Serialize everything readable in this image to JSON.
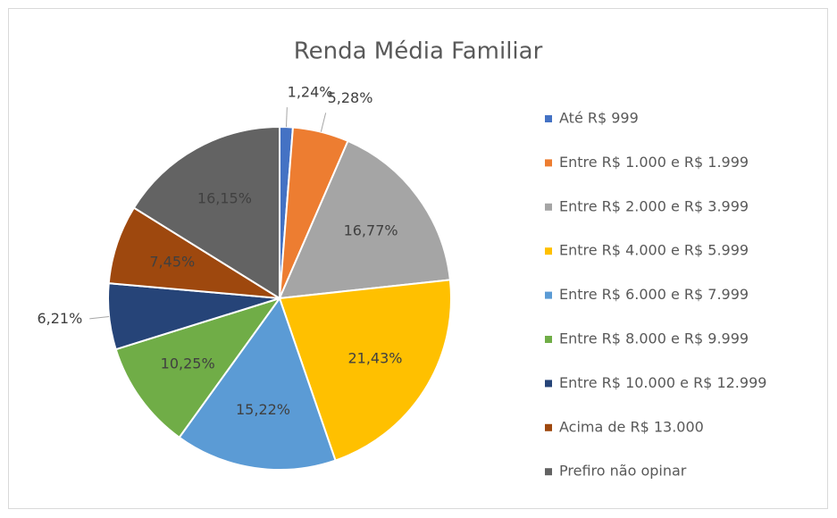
{
  "chart_data": {
    "type": "pie",
    "title": "Renda Média Familiar",
    "categories": [
      "Até R$ 999",
      "Entre R$ 1.000 e R$ 1.999",
      "Entre R$ 2.000 e R$ 3.999",
      "Entre R$ 4.000 e R$ 5.999",
      "Entre R$ 6.000 e R$ 7.999",
      "Entre R$ 8.000 e R$ 9.999",
      "Entre R$ 10.000 e R$ 12.999",
      "Acima de R$ 13.000",
      "Prefiro não opinar"
    ],
    "values": [
      1.24,
      5.28,
      16.77,
      21.43,
      15.22,
      10.25,
      6.21,
      7.45,
      16.15
    ],
    "value_labels": [
      "1,24%",
      "5,28%",
      "16,77%",
      "21,43%",
      "15,22%",
      "10,25%",
      "6,21%",
      "7,45%",
      "16,15%"
    ],
    "colors": [
      "#4472c4",
      "#ed7d31",
      "#a5a5a5",
      "#ffc000",
      "#5b9bd5",
      "#70ad47",
      "#264478",
      "#9e480e",
      "#636363"
    ],
    "legend": "right"
  }
}
